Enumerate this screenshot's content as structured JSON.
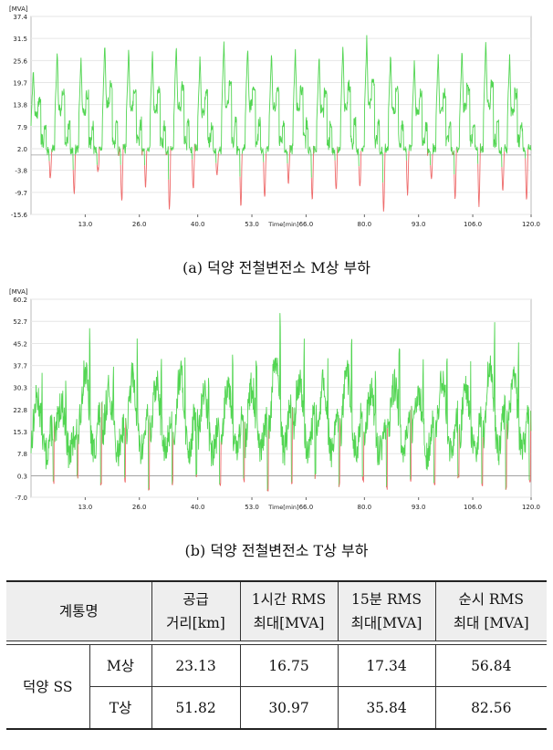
{
  "charts": [
    {
      "id": "a",
      "caption": "(a) 덕양 전철변전소 M상 부하",
      "chart_data": {
        "type": "line",
        "ylabel": "[MVA]",
        "xlabel": "Time[min]",
        "xlim": [
          0,
          120
        ],
        "ylim": [
          -15.6,
          37.4
        ],
        "yticks": [
          "37.4",
          "31.5",
          "25.6",
          "19.7",
          "13.8",
          "7.9",
          "2.0",
          "-3.8",
          "-9.7",
          "-15.6"
        ],
        "xticks": [
          "13.0",
          "26.0",
          "40.0",
          "53.0",
          "66.0",
          "80.0",
          "93.0",
          "106.0",
          "120.0"
        ],
        "baseline": 0.3,
        "cycle_peaks": [
          24,
          28,
          26,
          31,
          29,
          28,
          30,
          27,
          31,
          30,
          28,
          29,
          27,
          30,
          32,
          28,
          26,
          27,
          29,
          31,
          27
        ],
        "cycle_dips": [
          -6,
          -10,
          -4,
          -12,
          -8,
          -14,
          -9,
          -5,
          -13,
          -11,
          -7,
          -12,
          -9,
          -8,
          -15,
          -10,
          -6,
          -11,
          -13,
          -9,
          -12
        ],
        "series": [
          {
            "color_positive": "#52d552",
            "color_negative": "#ee6b6b"
          }
        ]
      }
    },
    {
      "id": "b",
      "caption": "(b) 덕양 전철변전소 T상 부하",
      "chart_data": {
        "type": "line",
        "ylabel": "[MVA]",
        "xlabel": "Time[min]",
        "xlim": [
          0,
          120
        ],
        "ylim": [
          -7.0,
          60.2
        ],
        "yticks": [
          "60.2",
          "52.7",
          "45.2",
          "37.7",
          "30.3",
          "22.8",
          "15.3",
          "7.8",
          "0.3",
          "-7.0"
        ],
        "xticks": [
          "13.0",
          "26.0",
          "40.0",
          "53.0",
          "66.0",
          "80.0",
          "93.0",
          "106.0",
          "120.0"
        ],
        "baseline": 0.3,
        "cycle_peaks": [
          36,
          33,
          52,
          40,
          48,
          44,
          50,
          38,
          46,
          42,
          58,
          47,
          44,
          50,
          39,
          45,
          41,
          48,
          43,
          54,
          46
        ],
        "cycle_dips": [
          -3,
          -1,
          -4,
          -2,
          -5,
          -3,
          -1,
          -4,
          -2,
          -6,
          -3,
          -1,
          -4,
          -2,
          -5,
          -2,
          -3,
          -1,
          -4,
          -5,
          -3
        ],
        "series": [
          {
            "color_positive": "#52d552",
            "color_negative": "#ee6b6b"
          }
        ]
      }
    }
  ],
  "table": {
    "header": {
      "name": "계통명",
      "distance_line1": "공급",
      "distance_line2": "거리[km]",
      "rms1h_line1": "1시간 RMS",
      "rms1h_line2": "최대[MVA]",
      "rms15m_line1": "15분 RMS",
      "rms15m_line2": "최대[MVA]",
      "inst_line1": "순시 RMS",
      "inst_line2": "최대 [MVA]"
    },
    "station": "덕양 SS",
    "rows": [
      {
        "phase": "M상",
        "distance": "23.13",
        "rms1h": "16.75",
        "rms15m": "17.34",
        "inst": "56.84"
      },
      {
        "phase": "T상",
        "distance": "51.82",
        "rms1h": "30.97",
        "rms15m": "35.84",
        "inst": "82.56"
      }
    ]
  }
}
